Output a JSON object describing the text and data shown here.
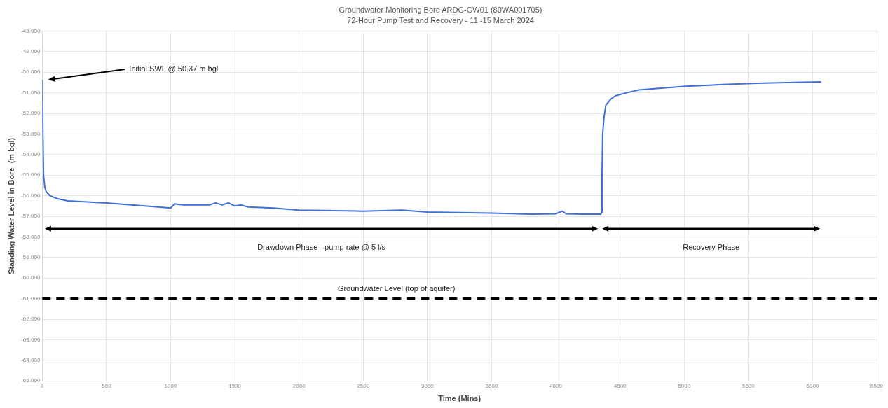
{
  "chart_data": {
    "type": "line",
    "title": "Groundwater Monitoring Bore ARDG-GW01 (80WA001705)",
    "subtitle": "72-Hour Pump Test and Recovery - 11 -15 March 2024",
    "xlabel": "Time (Mins)",
    "ylabel": "Standing Water Level in Bore  (m bgl)",
    "xlim": [
      0,
      6500
    ],
    "xticks": [
      0,
      500,
      1000,
      1500,
      2000,
      2500,
      3000,
      3500,
      4000,
      4500,
      5000,
      5500,
      6000,
      6500
    ],
    "ylim": [
      -65,
      -48
    ],
    "yticks": [
      {
        "value": -65,
        "label": "-65.000"
      },
      {
        "value": -64,
        "label": "-64.000"
      },
      {
        "value": -63,
        "label": "-63.000"
      },
      {
        "value": -62,
        "label": "-62.000"
      },
      {
        "value": -61,
        "label": "-61.000"
      },
      {
        "value": -60,
        "label": "-60.000"
      },
      {
        "value": -59,
        "label": "-59.000"
      },
      {
        "value": -58,
        "label": "-58.000"
      },
      {
        "value": -57,
        "label": "-57.000"
      },
      {
        "value": -56,
        "label": "-56.000"
      },
      {
        "value": -55,
        "label": "-55.000"
      },
      {
        "value": -54,
        "label": "-54.000"
      },
      {
        "value": -53,
        "label": "-53.000"
      },
      {
        "value": -52,
        "label": "-52.000"
      },
      {
        "value": -51,
        "label": "-51.000"
      },
      {
        "value": -50,
        "label": "-50.000"
      },
      {
        "value": -49,
        "label": "-49.000"
      },
      {
        "value": -48,
        "label": "-48.000"
      }
    ],
    "grid": true,
    "legend": false,
    "marker": "none",
    "line_style": "solid",
    "series": [
      {
        "color": "#3f6fd8",
        "x": [
          0,
          5,
          10,
          20,
          30,
          60,
          120,
          200,
          350,
          500,
          800,
          1000,
          1030,
          1100,
          1300,
          1350,
          1400,
          1450,
          1500,
          1550,
          1600,
          1800,
          2000,
          2500,
          2800,
          3000,
          3500,
          3800,
          4000,
          4050,
          4080,
          4200,
          4350,
          4357,
          4360,
          4365,
          4375,
          4390,
          4430,
          4467,
          4550,
          4648,
          4800,
          5016,
          5300,
          5566,
          5800,
          6066
        ],
        "values": [
          -50.37,
          -53,
          -55,
          -55.6,
          -55.8,
          -56,
          -56.15,
          -56.25,
          -56.3,
          -56.35,
          -56.5,
          -56.6,
          -56.4,
          -56.45,
          -56.45,
          -56.35,
          -56.45,
          -56.35,
          -56.5,
          -56.45,
          -56.55,
          -56.6,
          -56.7,
          -56.75,
          -56.7,
          -56.8,
          -56.85,
          -56.9,
          -56.88,
          -56.75,
          -56.88,
          -56.9,
          -56.9,
          -56.8,
          -55,
          -53,
          -52.2,
          -51.6,
          -51.3,
          -51.14,
          -51,
          -50.86,
          -50.78,
          -50.68,
          -50.6,
          -50.54,
          -50.5,
          -50.47
        ]
      }
    ],
    "ref_lines": [
      {
        "axis": "y",
        "value": -61,
        "label": "Groundwater Level (top of aquifer)",
        "color": "#000000",
        "line_style": "dashed"
      }
    ],
    "annotations": [
      "Initial SWL @ 50.37 m bgl",
      "Drawdown Phase - pump rate @ 5 l/s",
      "Recovery Phase"
    ]
  }
}
